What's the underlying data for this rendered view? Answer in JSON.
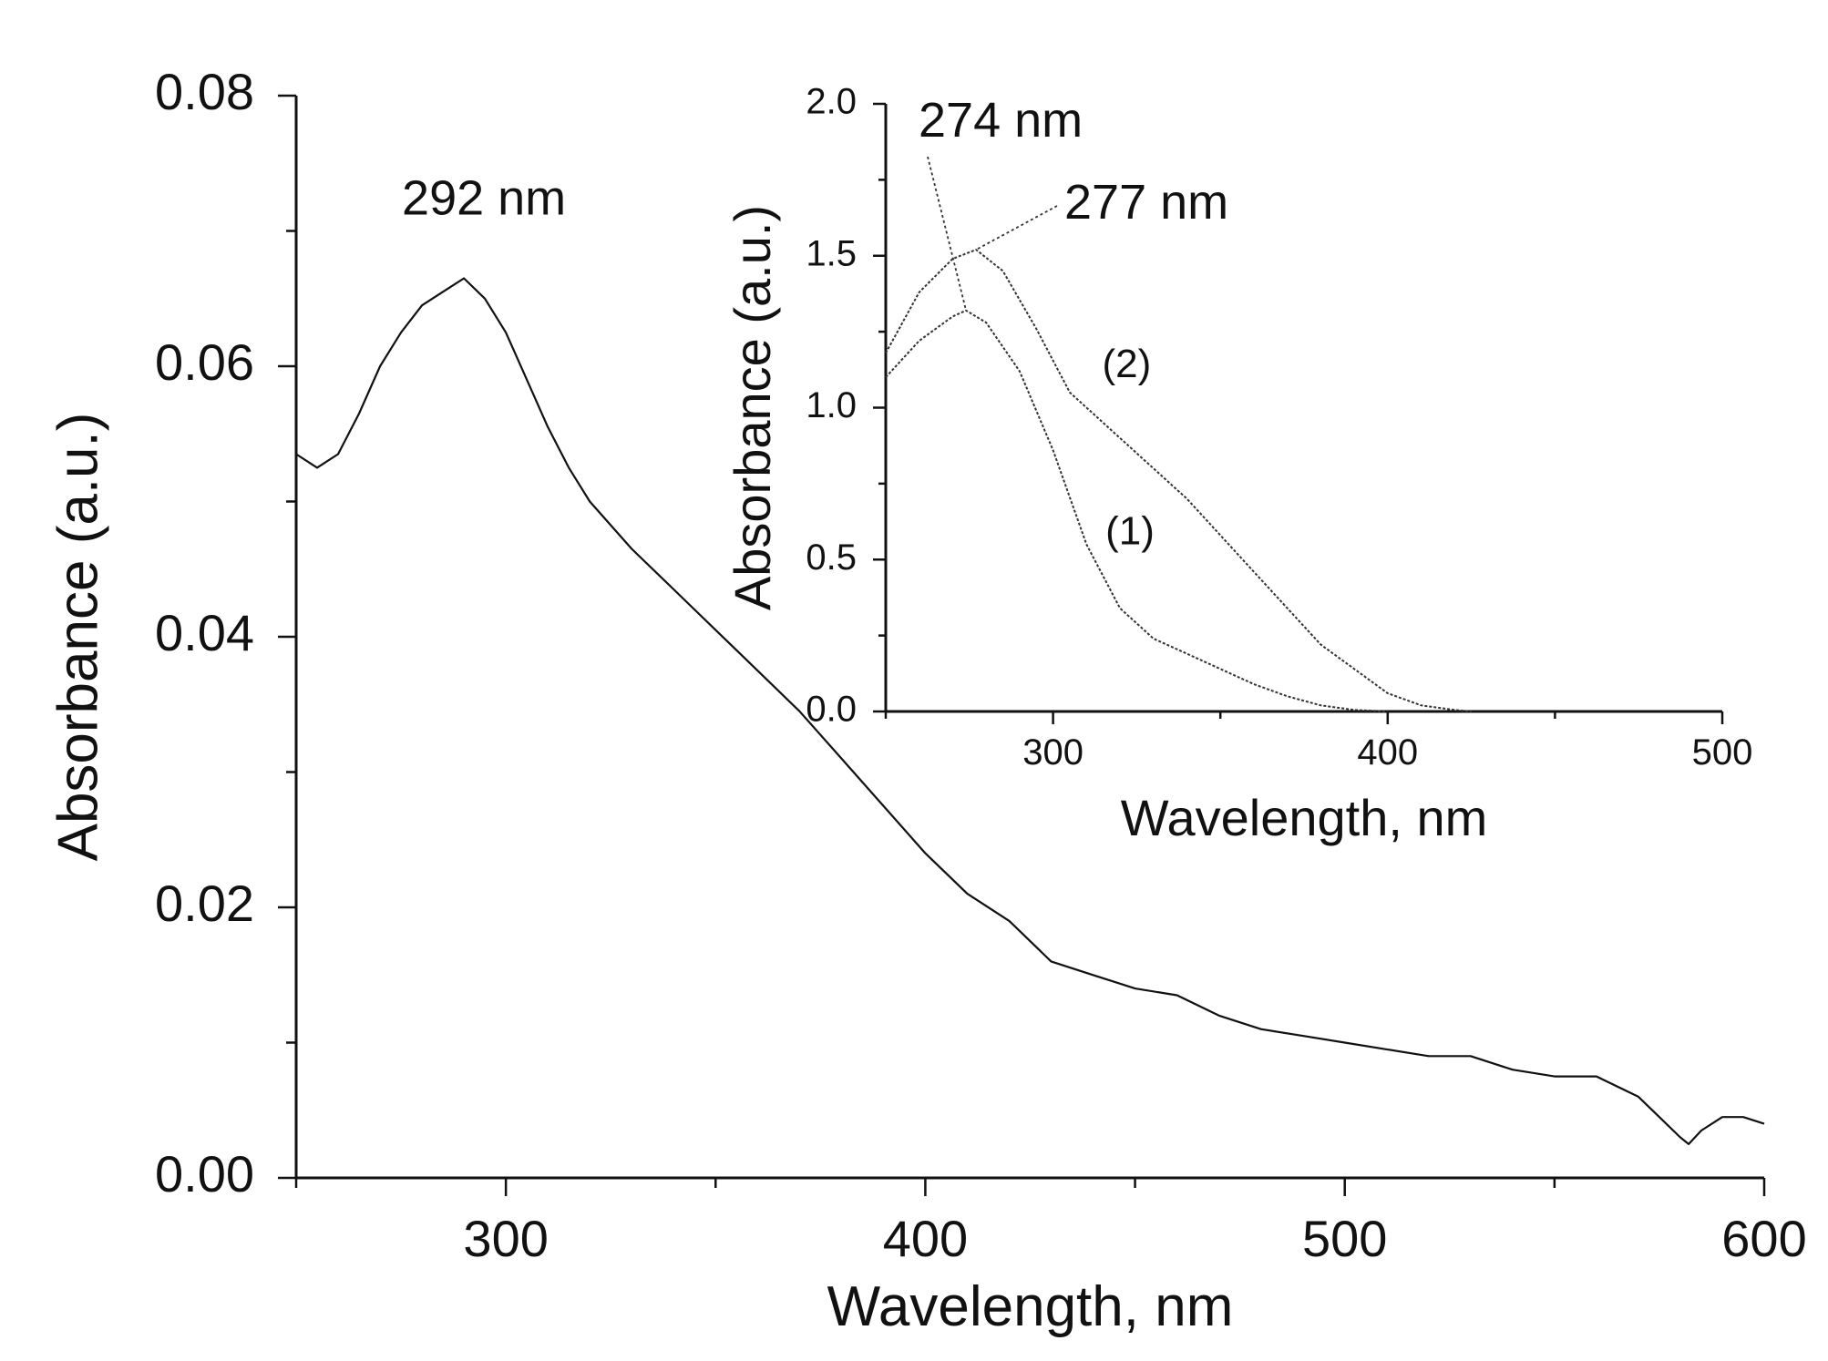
{
  "chart_data": [
    {
      "id": "main",
      "type": "line",
      "xlabel": "Wavelength, nm",
      "ylabel": "Absorbance (a.u.)",
      "xlim": [
        250,
        600
      ],
      "ylim": [
        0.0,
        0.08
      ],
      "xticks": [
        {
          "value": 300,
          "label": "300"
        },
        {
          "value": 400,
          "label": "400"
        },
        {
          "value": 500,
          "label": "500"
        },
        {
          "value": 600,
          "label": "600"
        }
      ],
      "xminor": [
        250,
        350,
        450,
        550
      ],
      "yticks": [
        {
          "value": 0.0,
          "label": "0.00"
        },
        {
          "value": 0.02,
          "label": "0.02"
        },
        {
          "value": 0.04,
          "label": "0.04"
        },
        {
          "value": 0.06,
          "label": "0.06"
        },
        {
          "value": 0.08,
          "label": "0.08"
        }
      ],
      "yminor": [
        0.01,
        0.03,
        0.05,
        0.07
      ],
      "series": [
        {
          "name": "spectrum",
          "x": [
            250,
            255,
            260,
            265,
            270,
            275,
            280,
            285,
            290,
            295,
            300,
            305,
            310,
            315,
            320,
            330,
            340,
            350,
            360,
            370,
            380,
            390,
            400,
            410,
            420,
            430,
            440,
            450,
            460,
            470,
            480,
            490,
            500,
            510,
            520,
            530,
            540,
            550,
            560,
            570,
            575,
            580,
            582,
            585,
            590,
            595,
            600
          ],
          "y": [
            0.0535,
            0.0525,
            0.0535,
            0.0565,
            0.06,
            0.0625,
            0.0645,
            0.0655,
            0.0665,
            0.065,
            0.0625,
            0.059,
            0.0555,
            0.0525,
            0.05,
            0.0465,
            0.0435,
            0.0405,
            0.0375,
            0.0345,
            0.031,
            0.0275,
            0.024,
            0.021,
            0.019,
            0.016,
            0.015,
            0.014,
            0.0135,
            0.012,
            0.011,
            0.0105,
            0.01,
            0.0095,
            0.009,
            0.009,
            0.008,
            0.0075,
            0.0075,
            0.006,
            0.0045,
            0.003,
            0.0025,
            0.0035,
            0.0045,
            0.0045,
            0.004
          ]
        }
      ],
      "annotations": [
        {
          "text": "292 nm",
          "x": 290,
          "y": 0.0665
        }
      ]
    },
    {
      "id": "inset",
      "type": "line",
      "xlabel": "Wavelength, nm",
      "ylabel": "Absorbance (a.u.)",
      "xlim": [
        250,
        500
      ],
      "ylim": [
        0.0,
        2.0
      ],
      "xticks": [
        {
          "value": 300,
          "label": "300"
        },
        {
          "value": 400,
          "label": "400"
        },
        {
          "value": 500,
          "label": "500"
        }
      ],
      "xminor": [
        250,
        350,
        450
      ],
      "yticks": [
        {
          "value": 0.0,
          "label": "0.0"
        },
        {
          "value": 0.5,
          "label": "0.5"
        },
        {
          "value": 1.0,
          "label": "1.0"
        },
        {
          "value": 1.5,
          "label": "1.5"
        },
        {
          "value": 2.0,
          "label": "2.0"
        }
      ],
      "yminor": [
        0.25,
        0.75,
        1.25,
        1.75
      ],
      "series": [
        {
          "name": "(1)",
          "x": [
            250,
            260,
            270,
            274,
            280,
            290,
            300,
            310,
            320,
            330,
            340,
            350,
            360,
            370,
            380,
            390,
            400
          ],
          "y": [
            1.1,
            1.22,
            1.3,
            1.32,
            1.28,
            1.12,
            0.86,
            0.55,
            0.34,
            0.24,
            0.19,
            0.14,
            0.09,
            0.05,
            0.02,
            0.005,
            0.0
          ]
        },
        {
          "name": "(2)",
          "x": [
            250,
            260,
            270,
            277,
            285,
            295,
            305,
            320,
            340,
            360,
            380,
            400,
            410,
            420,
            425
          ],
          "y": [
            1.18,
            1.38,
            1.49,
            1.52,
            1.45,
            1.26,
            1.05,
            0.9,
            0.7,
            0.46,
            0.22,
            0.06,
            0.02,
            0.005,
            0.0
          ]
        }
      ],
      "annotations": [
        {
          "text": "274 nm",
          "x": 274,
          "y": 1.32
        },
        {
          "text": "277 nm",
          "x": 277,
          "y": 1.52
        }
      ],
      "series_labels": [
        {
          "text": "(1)",
          "x": 323,
          "y": 0.55
        },
        {
          "text": "(2)",
          "x": 322,
          "y": 1.1
        }
      ]
    }
  ]
}
